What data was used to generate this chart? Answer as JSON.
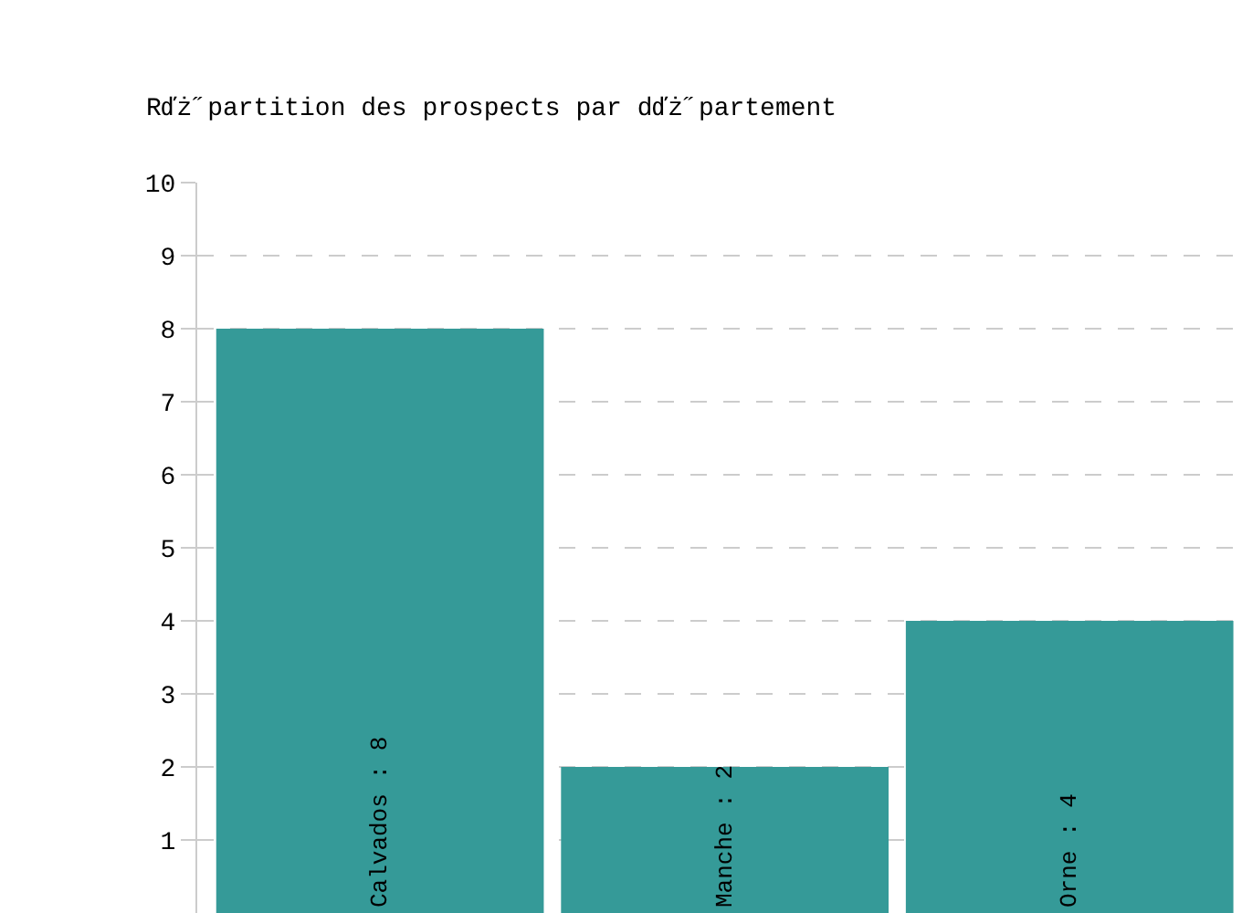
{
  "chart_data": {
    "type": "bar",
    "title": "Rďż˝partition des prospects par dďż˝partement",
    "categories": [
      null,
      null,
      null
    ],
    "values": [
      8,
      2,
      4
    ],
    "value_labels": [
      "Calvados : 8",
      "Manche : 2",
      "Orne : 4"
    ],
    "color": "#359a98",
    "ylim": [
      0,
      10
    ],
    "yticks": [
      1,
      2,
      3,
      4,
      5,
      6,
      7,
      8,
      9,
      10
    ],
    "grid": "y",
    "tick_labels": "y"
  }
}
